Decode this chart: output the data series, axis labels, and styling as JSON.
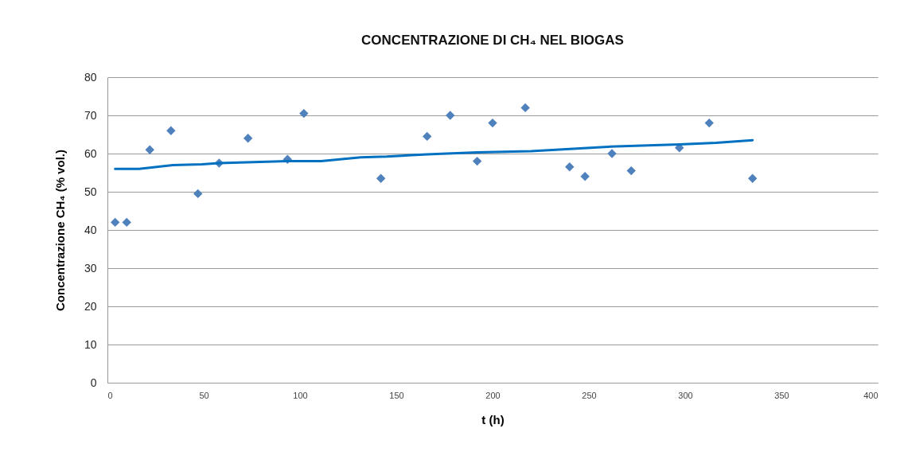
{
  "chart_data": {
    "type": "scatter",
    "title": "CONCENTRAZIONE DI CH₄ NEL BIOGAS",
    "xlabel": "t (h)",
    "ylabel": "Concentrazione CH₄ (% vol.)",
    "xlim": [
      0,
      400
    ],
    "xticks": [
      0,
      50,
      100,
      150,
      200,
      250,
      300,
      350,
      400
    ],
    "ylim": [
      0,
      80
    ],
    "yticks": [
      0,
      10,
      20,
      30,
      40,
      50,
      60,
      70,
      80
    ],
    "grid": "y",
    "marker": "diamond",
    "series": [
      {
        "color": "#4f81bd",
        "x": [
          4,
          10,
          22,
          33,
          47,
          58,
          73,
          93.5,
          102,
          142,
          166,
          178,
          192,
          200,
          217,
          240,
          248,
          262,
          272,
          297,
          312.5,
          335
        ],
        "values": [
          42,
          42,
          61,
          66,
          49.5,
          57.5,
          64,
          58.5,
          70.5,
          53.5,
          64.5,
          70,
          58,
          68,
          72,
          56.5,
          54,
          60,
          55.5,
          61.5,
          68,
          53.5
        ]
      },
      {
        "type": "line",
        "marker": "none",
        "color": "#0070c0",
        "x": [
          4,
          16.5,
          34,
          49,
          58,
          93.5,
          111,
          131.5,
          145,
          166,
          192,
          220,
          261,
          297,
          316,
          335
        ],
        "values": [
          56,
          56,
          57,
          57.2,
          57.5,
          58,
          58,
          59,
          59.2,
          59.8,
          60.3,
          60.6,
          61.8,
          62.4,
          62.8,
          63.5
        ]
      }
    ]
  }
}
